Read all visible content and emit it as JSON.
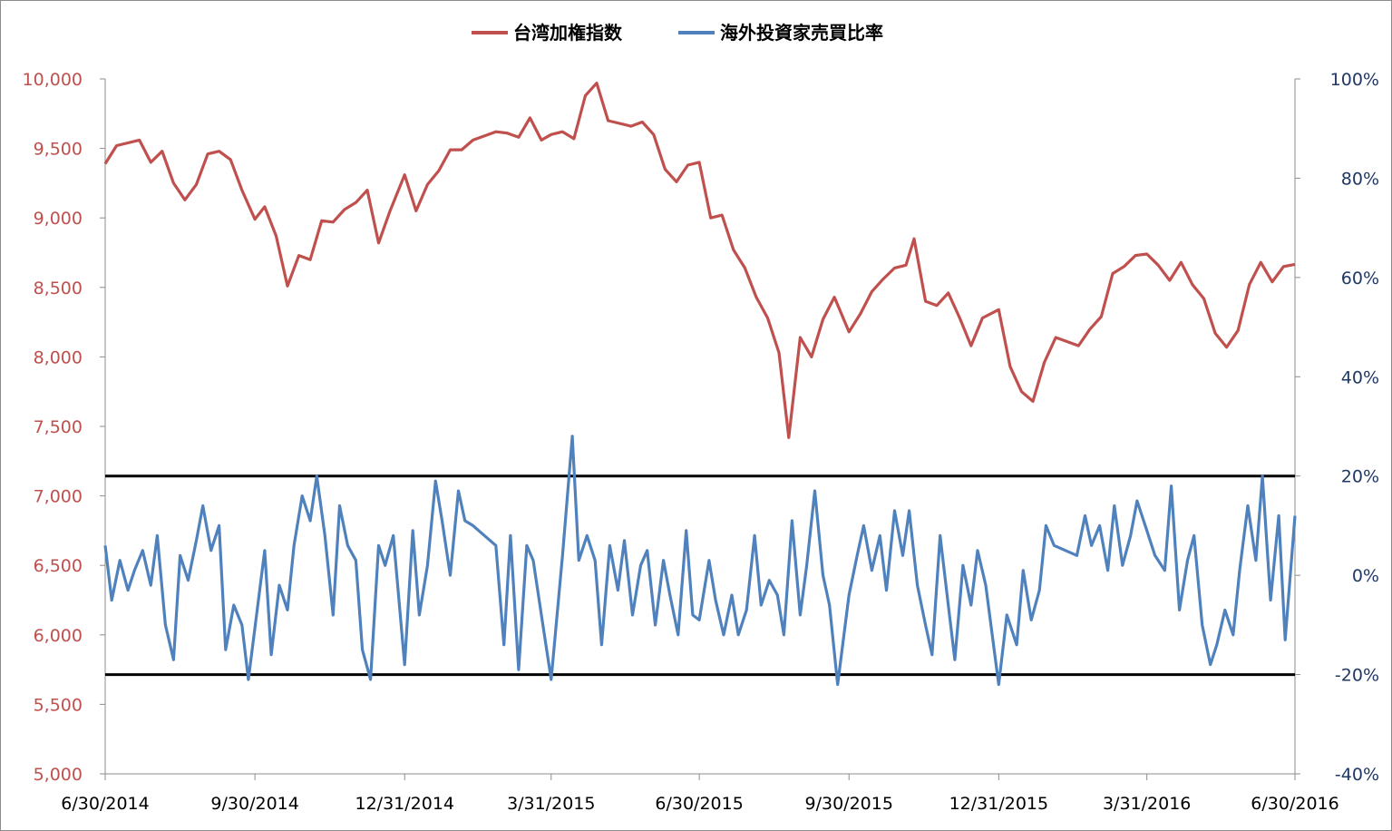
{
  "chart_data": {
    "type": "line",
    "title": "",
    "legend_position": "top-center",
    "grid": false,
    "x_ticks": [
      "6/30/2014",
      "9/30/2014",
      "12/31/2014",
      "3/31/2015",
      "6/30/2015",
      "9/30/2015",
      "12/31/2015",
      "3/31/2016",
      "6/30/2016"
    ],
    "x_range": [
      "2014-06-30",
      "2016-06-30"
    ],
    "y_left": {
      "ticks": [
        "5,000",
        "5,500",
        "6,000",
        "6,500",
        "7,000",
        "7,500",
        "8,000",
        "8,500",
        "9,000",
        "9,500",
        "10,000"
      ],
      "range": [
        5000,
        10000
      ],
      "color": "#c0504d"
    },
    "y_right": {
      "ticks": [
        "-40%",
        "-20%",
        "0%",
        "20%",
        "40%",
        "60%",
        "80%",
        "100%"
      ],
      "range": [
        -40,
        100
      ],
      "color": "#1f3864"
    },
    "reference_lines_right_axis": [
      20,
      -20
    ],
    "series": [
      {
        "name": "台湾加権指数",
        "axis": "left",
        "color": "#c0504d",
        "points": [
          [
            "2014-06-30",
            9390
          ],
          [
            "2014-07-07",
            9520
          ],
          [
            "2014-07-14",
            9540
          ],
          [
            "2014-07-21",
            9560
          ],
          [
            "2014-07-28",
            9400
          ],
          [
            "2014-08-04",
            9480
          ],
          [
            "2014-08-11",
            9250
          ],
          [
            "2014-08-18",
            9130
          ],
          [
            "2014-08-25",
            9240
          ],
          [
            "2014-09-01",
            9460
          ],
          [
            "2014-09-08",
            9480
          ],
          [
            "2014-09-15",
            9420
          ],
          [
            "2014-09-22",
            9200
          ],
          [
            "2014-09-30",
            8990
          ],
          [
            "2014-10-06",
            9080
          ],
          [
            "2014-10-13",
            8870
          ],
          [
            "2014-10-20",
            8510
          ],
          [
            "2014-10-27",
            8730
          ],
          [
            "2014-11-03",
            8700
          ],
          [
            "2014-11-10",
            8980
          ],
          [
            "2014-11-17",
            8970
          ],
          [
            "2014-11-24",
            9060
          ],
          [
            "2014-12-01",
            9110
          ],
          [
            "2014-12-08",
            9200
          ],
          [
            "2014-12-15",
            8820
          ],
          [
            "2014-12-22",
            9050
          ],
          [
            "2014-12-31",
            9310
          ],
          [
            "2015-01-07",
            9050
          ],
          [
            "2015-01-14",
            9240
          ],
          [
            "2015-01-21",
            9340
          ],
          [
            "2015-01-28",
            9490
          ],
          [
            "2015-02-04",
            9490
          ],
          [
            "2015-02-11",
            9560
          ],
          [
            "2015-02-25",
            9620
          ],
          [
            "2015-03-04",
            9610
          ],
          [
            "2015-03-11",
            9580
          ],
          [
            "2015-03-18",
            9720
          ],
          [
            "2015-03-25",
            9560
          ],
          [
            "2015-03-31",
            9600
          ],
          [
            "2015-04-07",
            9620
          ],
          [
            "2015-04-14",
            9570
          ],
          [
            "2015-04-21",
            9880
          ],
          [
            "2015-04-28",
            9970
          ],
          [
            "2015-05-05",
            9700
          ],
          [
            "2015-05-12",
            9680
          ],
          [
            "2015-05-19",
            9660
          ],
          [
            "2015-05-26",
            9690
          ],
          [
            "2015-06-02",
            9600
          ],
          [
            "2015-06-09",
            9350
          ],
          [
            "2015-06-16",
            9260
          ],
          [
            "2015-06-23",
            9380
          ],
          [
            "2015-06-30",
            9400
          ],
          [
            "2015-07-07",
            9000
          ],
          [
            "2015-07-14",
            9020
          ],
          [
            "2015-07-21",
            8770
          ],
          [
            "2015-07-28",
            8640
          ],
          [
            "2015-08-04",
            8430
          ],
          [
            "2015-08-11",
            8280
          ],
          [
            "2015-08-18",
            8030
          ],
          [
            "2015-08-24",
            7420
          ],
          [
            "2015-08-31",
            8140
          ],
          [
            "2015-09-07",
            8000
          ],
          [
            "2015-09-14",
            8270
          ],
          [
            "2015-09-21",
            8430
          ],
          [
            "2015-09-30",
            8180
          ],
          [
            "2015-10-07",
            8310
          ],
          [
            "2015-10-14",
            8470
          ],
          [
            "2015-10-21",
            8560
          ],
          [
            "2015-10-28",
            8640
          ],
          [
            "2015-11-04",
            8660
          ],
          [
            "2015-11-09",
            8850
          ],
          [
            "2015-11-16",
            8400
          ],
          [
            "2015-11-23",
            8370
          ],
          [
            "2015-11-30",
            8460
          ],
          [
            "2015-12-07",
            8280
          ],
          [
            "2015-12-14",
            8080
          ],
          [
            "2015-12-21",
            8280
          ],
          [
            "2015-12-31",
            8340
          ],
          [
            "2016-01-07",
            7930
          ],
          [
            "2016-01-14",
            7750
          ],
          [
            "2016-01-21",
            7680
          ],
          [
            "2016-01-28",
            7960
          ],
          [
            "2016-02-04",
            8140
          ],
          [
            "2016-02-18",
            8080
          ],
          [
            "2016-02-25",
            8200
          ],
          [
            "2016-03-03",
            8290
          ],
          [
            "2016-03-10",
            8600
          ],
          [
            "2016-03-17",
            8650
          ],
          [
            "2016-03-24",
            8730
          ],
          [
            "2016-03-31",
            8740
          ],
          [
            "2016-04-07",
            8660
          ],
          [
            "2016-04-14",
            8550
          ],
          [
            "2016-04-21",
            8680
          ],
          [
            "2016-04-28",
            8520
          ],
          [
            "2016-05-05",
            8420
          ],
          [
            "2016-05-12",
            8170
          ],
          [
            "2016-05-19",
            8070
          ],
          [
            "2016-05-26",
            8190
          ],
          [
            "2016-06-02",
            8520
          ],
          [
            "2016-06-09",
            8680
          ],
          [
            "2016-06-16",
            8540
          ],
          [
            "2016-06-23",
            8650
          ],
          [
            "2016-06-30",
            8666
          ]
        ]
      },
      {
        "name": "海外投資家売買比率",
        "axis": "right",
        "color": "#4f81bd",
        "points": [
          [
            "2014-06-30",
            6
          ],
          [
            "2014-07-04",
            -5
          ],
          [
            "2014-07-09",
            3
          ],
          [
            "2014-07-14",
            -3
          ],
          [
            "2014-07-18",
            1
          ],
          [
            "2014-07-23",
            5
          ],
          [
            "2014-07-28",
            -2
          ],
          [
            "2014-08-01",
            8
          ],
          [
            "2014-08-06",
            -10
          ],
          [
            "2014-08-11",
            -17
          ],
          [
            "2014-08-15",
            4
          ],
          [
            "2014-08-20",
            -1
          ],
          [
            "2014-08-25",
            7
          ],
          [
            "2014-08-29",
            14
          ],
          [
            "2014-09-03",
            5
          ],
          [
            "2014-09-08",
            10
          ],
          [
            "2014-09-12",
            -15
          ],
          [
            "2014-09-17",
            -6
          ],
          [
            "2014-09-22",
            -10
          ],
          [
            "2014-09-26",
            -21
          ],
          [
            "2014-10-01",
            -8
          ],
          [
            "2014-10-06",
            5
          ],
          [
            "2014-10-10",
            -16
          ],
          [
            "2014-10-15",
            -2
          ],
          [
            "2014-10-20",
            -7
          ],
          [
            "2014-10-24",
            6
          ],
          [
            "2014-10-29",
            16
          ],
          [
            "2014-11-03",
            11
          ],
          [
            "2014-11-07",
            20
          ],
          [
            "2014-11-12",
            8
          ],
          [
            "2014-11-17",
            -8
          ],
          [
            "2014-11-21",
            14
          ],
          [
            "2014-11-26",
            6
          ],
          [
            "2014-12-01",
            3
          ],
          [
            "2014-12-05",
            -15
          ],
          [
            "2014-12-10",
            -21
          ],
          [
            "2014-12-15",
            6
          ],
          [
            "2014-12-19",
            2
          ],
          [
            "2014-12-24",
            8
          ],
          [
            "2014-12-31",
            -18
          ],
          [
            "2015-01-05",
            9
          ],
          [
            "2015-01-09",
            -8
          ],
          [
            "2015-01-14",
            2
          ],
          [
            "2015-01-19",
            19
          ],
          [
            "2015-01-23",
            11
          ],
          [
            "2015-01-28",
            0
          ],
          [
            "2015-02-02",
            17
          ],
          [
            "2015-02-06",
            11
          ],
          [
            "2015-02-11",
            10
          ],
          [
            "2015-02-25",
            6
          ],
          [
            "2015-03-02",
            -14
          ],
          [
            "2015-03-06",
            8
          ],
          [
            "2015-03-11",
            -19
          ],
          [
            "2015-03-16",
            6
          ],
          [
            "2015-03-20",
            3
          ],
          [
            "2015-03-25",
            -8
          ],
          [
            "2015-03-31",
            -21
          ],
          [
            "2015-04-07",
            4
          ],
          [
            "2015-04-13",
            28
          ],
          [
            "2015-04-17",
            3
          ],
          [
            "2015-04-22",
            8
          ],
          [
            "2015-04-27",
            3
          ],
          [
            "2015-05-01",
            -14
          ],
          [
            "2015-05-06",
            6
          ],
          [
            "2015-05-11",
            -3
          ],
          [
            "2015-05-15",
            7
          ],
          [
            "2015-05-20",
            -8
          ],
          [
            "2015-05-25",
            2
          ],
          [
            "2015-05-29",
            5
          ],
          [
            "2015-06-03",
            -10
          ],
          [
            "2015-06-08",
            3
          ],
          [
            "2015-06-12",
            -4
          ],
          [
            "2015-06-17",
            -12
          ],
          [
            "2015-06-22",
            9
          ],
          [
            "2015-06-26",
            -8
          ],
          [
            "2015-06-30",
            -9
          ],
          [
            "2015-07-06",
            3
          ],
          [
            "2015-07-10",
            -5
          ],
          [
            "2015-07-15",
            -12
          ],
          [
            "2015-07-20",
            -4
          ],
          [
            "2015-07-24",
            -12
          ],
          [
            "2015-07-29",
            -7
          ],
          [
            "2015-08-03",
            8
          ],
          [
            "2015-08-07",
            -6
          ],
          [
            "2015-08-12",
            -1
          ],
          [
            "2015-08-17",
            -4
          ],
          [
            "2015-08-21",
            -12
          ],
          [
            "2015-08-26",
            11
          ],
          [
            "2015-08-31",
            -8
          ],
          [
            "2015-09-04",
            2
          ],
          [
            "2015-09-09",
            17
          ],
          [
            "2015-09-14",
            0
          ],
          [
            "2015-09-18",
            -6
          ],
          [
            "2015-09-23",
            -22
          ],
          [
            "2015-09-30",
            -4
          ],
          [
            "2015-10-05",
            4
          ],
          [
            "2015-10-09",
            10
          ],
          [
            "2015-10-14",
            1
          ],
          [
            "2015-10-19",
            8
          ],
          [
            "2015-10-23",
            -3
          ],
          [
            "2015-10-28",
            13
          ],
          [
            "2015-11-02",
            4
          ],
          [
            "2015-11-06",
            13
          ],
          [
            "2015-11-11",
            -2
          ],
          [
            "2015-11-16",
            -10
          ],
          [
            "2015-11-20",
            -16
          ],
          [
            "2015-11-25",
            8
          ],
          [
            "2015-11-30",
            -6
          ],
          [
            "2015-12-04",
            -17
          ],
          [
            "2015-12-09",
            2
          ],
          [
            "2015-12-14",
            -6
          ],
          [
            "2015-12-18",
            5
          ],
          [
            "2015-12-23",
            -2
          ],
          [
            "2015-12-31",
            -22
          ],
          [
            "2016-01-05",
            -8
          ],
          [
            "2016-01-11",
            -14
          ],
          [
            "2016-01-15",
            1
          ],
          [
            "2016-01-20",
            -9
          ],
          [
            "2016-01-25",
            -3
          ],
          [
            "2016-01-29",
            10
          ],
          [
            "2016-02-03",
            6
          ],
          [
            "2016-02-17",
            4
          ],
          [
            "2016-02-22",
            12
          ],
          [
            "2016-02-26",
            6
          ],
          [
            "2016-03-02",
            10
          ],
          [
            "2016-03-07",
            1
          ],
          [
            "2016-03-11",
            14
          ],
          [
            "2016-03-16",
            2
          ],
          [
            "2016-03-21",
            8
          ],
          [
            "2016-03-25",
            15
          ],
          [
            "2016-03-31",
            9
          ],
          [
            "2016-04-05",
            4
          ],
          [
            "2016-04-11",
            1
          ],
          [
            "2016-04-15",
            18
          ],
          [
            "2016-04-20",
            -7
          ],
          [
            "2016-04-25",
            3
          ],
          [
            "2016-04-29",
            8
          ],
          [
            "2016-05-04",
            -10
          ],
          [
            "2016-05-09",
            -18
          ],
          [
            "2016-05-13",
            -14
          ],
          [
            "2016-05-18",
            -7
          ],
          [
            "2016-05-23",
            -12
          ],
          [
            "2016-05-27",
            1
          ],
          [
            "2016-06-01",
            14
          ],
          [
            "2016-06-06",
            3
          ],
          [
            "2016-06-10",
            20
          ],
          [
            "2016-06-15",
            -5
          ],
          [
            "2016-06-20",
            12
          ],
          [
            "2016-06-24",
            -13
          ],
          [
            "2016-06-30",
            12
          ]
        ]
      }
    ]
  }
}
